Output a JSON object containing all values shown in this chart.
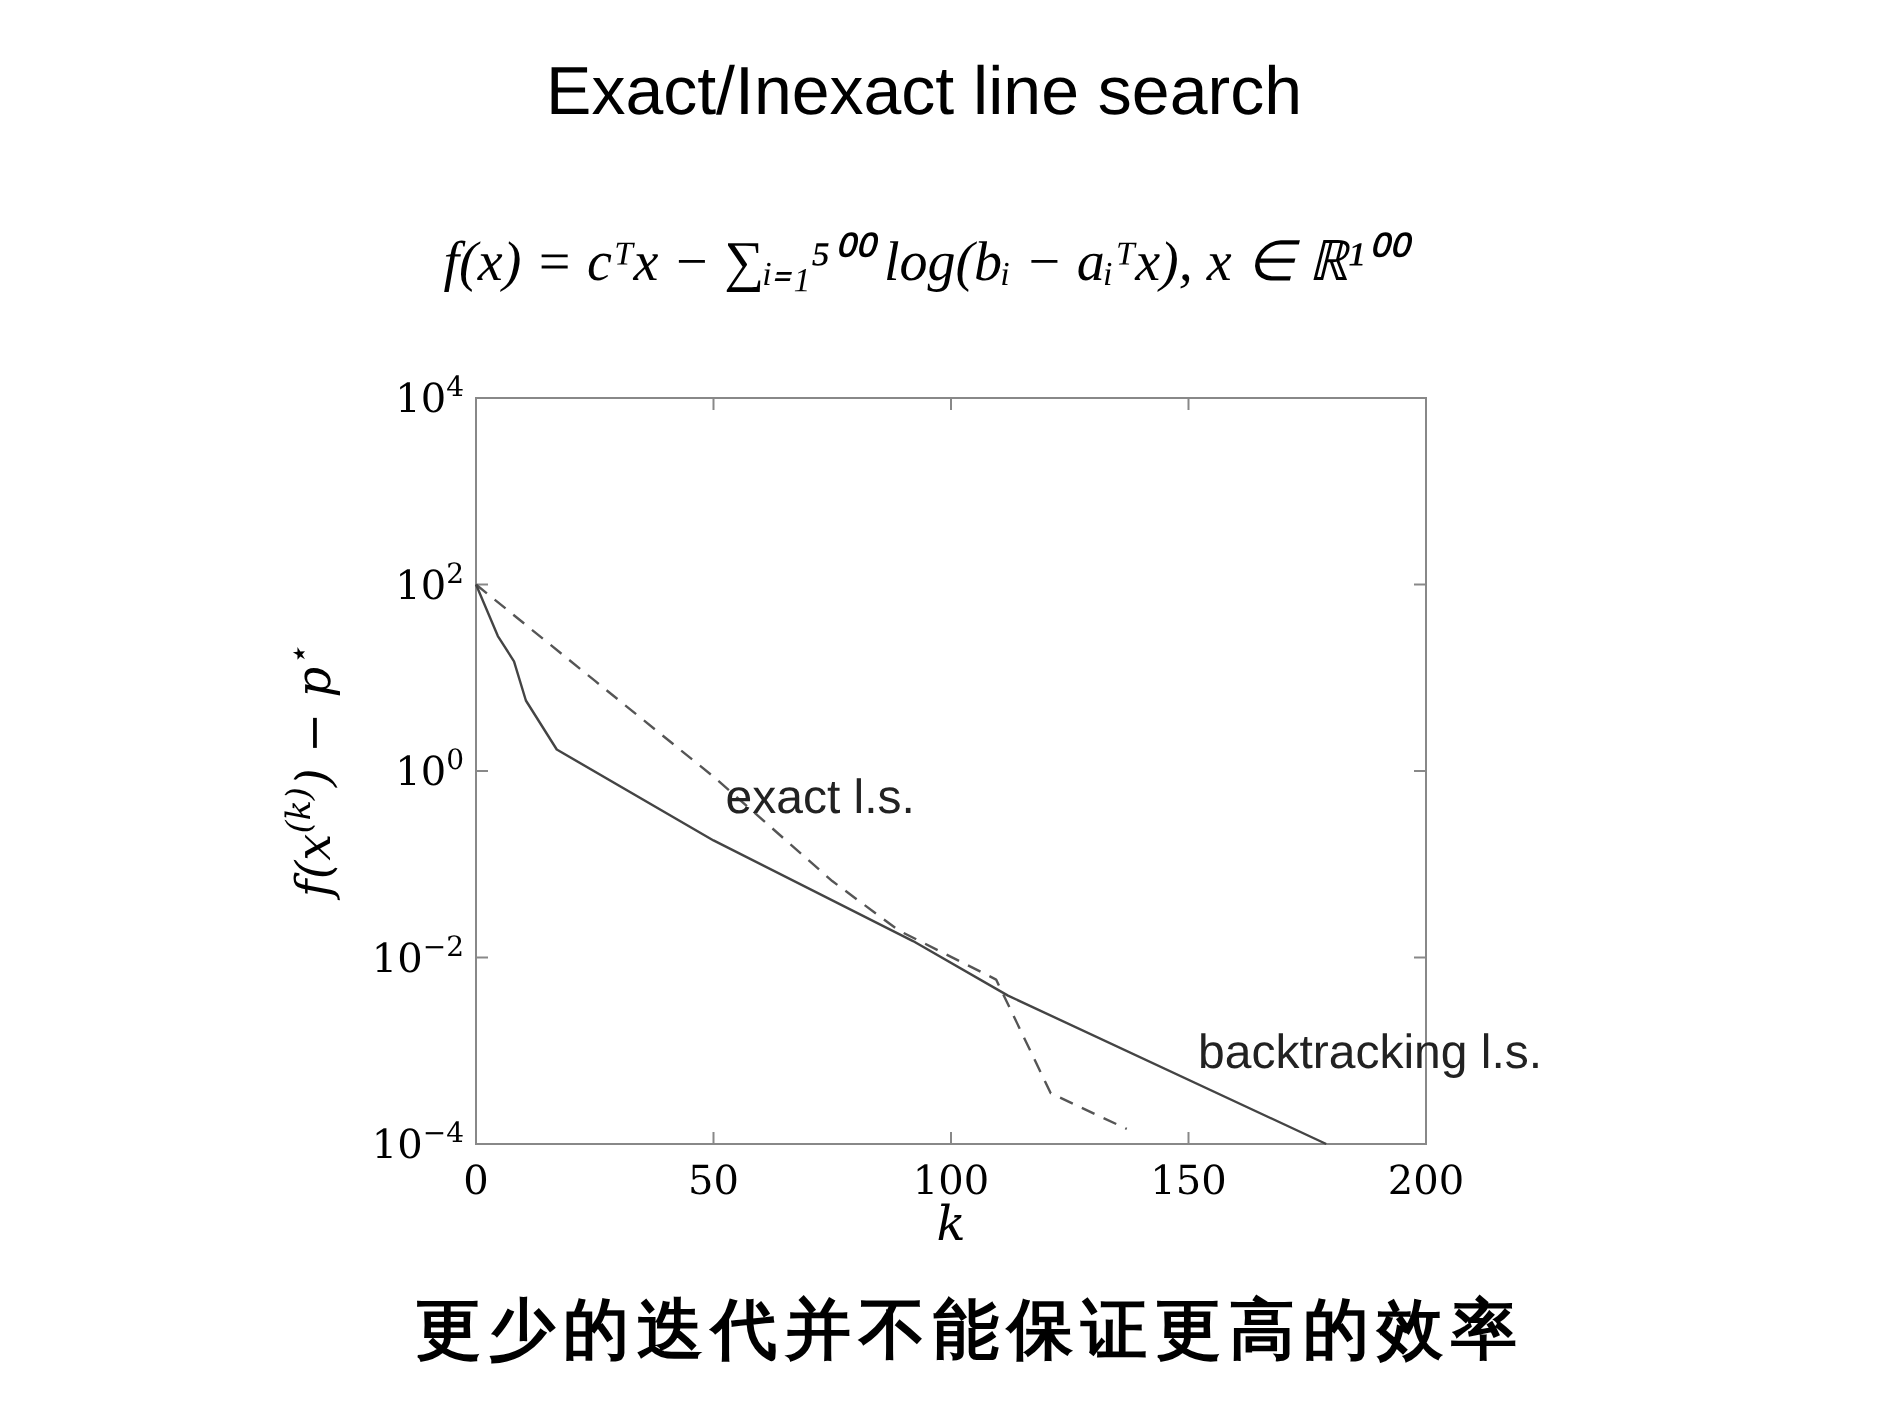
{
  "chart_data": {
    "type": "line",
    "title": "Exact/Inexact line search",
    "subtitle": "f(x) = cᵀx − ∑ᵢ₌₁⁵⁰⁰ log(bᵢ − aᵢᵀx),  x ∈ ℝ¹⁰⁰",
    "xlabel": "k",
    "ylabel": "f(x$^{(k)}$) − p$^{⋆}$",
    "log": "y",
    "grid": false,
    "legend": false,
    "marker": "none",
    "xlim": [
      0,
      200
    ],
    "xticks": [
      0,
      50,
      100,
      150,
      200
    ],
    "ylim": [
      0.0001,
      10000
    ],
    "yticks": [
      {
        "value": 0.0001,
        "label": "10$^{−4}$"
      },
      {
        "value": 0.01,
        "label": "10$^{−2}$"
      },
      {
        "value": 1,
        "label": "10$^{0}$"
      },
      {
        "value": 100,
        "label": "10$^{2}$"
      },
      {
        "value": 10000,
        "label": "10$^{4}$"
      }
    ],
    "series": [
      {
        "name": "exact l.s.",
        "color": "#555555",
        "line_style": "dashed",
        "x": [
          0,
          25,
          50,
          75,
          89,
          109.5,
          121,
          137
        ],
        "values": [
          100,
          9.3,
          0.87,
          0.066,
          0.0195,
          0.0058,
          0.00035,
          0.000145
        ]
      },
      {
        "name": "backtracking l.s.",
        "color": "#444444",
        "line_style": "solid",
        "x": [
          0,
          4.6,
          8,
          10.5,
          17,
          50,
          92,
          112,
          179
        ],
        "values": [
          100,
          28,
          15,
          5.7,
          1.7,
          0.18,
          0.015,
          0.0039,
          0.0001
        ]
      }
    ],
    "annotations": [
      "更少的迭代并不能保证更高的效率"
    ]
  }
}
